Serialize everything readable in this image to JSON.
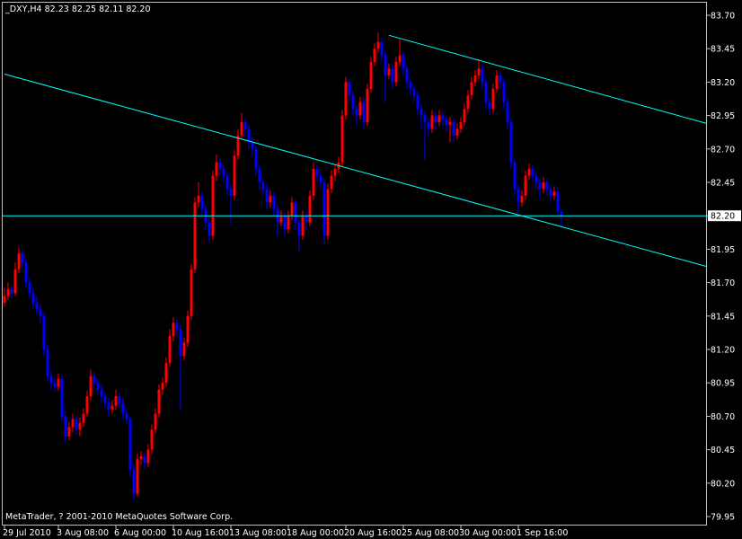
{
  "chart_data": {
    "type": "candlestick",
    "header": {
      "symbol": "_DXY,H4",
      "ohlc_labels": [
        "82.23",
        "82.25",
        "82.11",
        "82.20"
      ]
    },
    "footer": "MetaTrader, ? 2001-2010 MetaQuotes Software Corp.",
    "up_color": "#ff0000",
    "down_color": "#0000ff",
    "line_color": "#00ffff",
    "background": "#000000",
    "ylim": [
      79.95,
      83.7
    ],
    "yticks": [
      {
        "value": 83.7,
        "label": "83.70"
      },
      {
        "value": 83.45,
        "label": "83.45"
      },
      {
        "value": 83.2,
        "label": "83.20"
      },
      {
        "value": 82.95,
        "label": "82.95"
      },
      {
        "value": 82.7,
        "label": "82.70"
      },
      {
        "value": 82.45,
        "label": "82.45"
      },
      {
        "value": 82.2,
        "label": "82.20"
      },
      {
        "value": 81.95,
        "label": "81.95"
      },
      {
        "value": 81.7,
        "label": "81.70"
      },
      {
        "value": 81.45,
        "label": "81.45"
      },
      {
        "value": 81.2,
        "label": "81.20"
      },
      {
        "value": 80.95,
        "label": "80.95"
      },
      {
        "value": 80.7,
        "label": "80.70"
      },
      {
        "value": 80.45,
        "label": "80.45"
      },
      {
        "value": 80.2,
        "label": "80.20"
      },
      {
        "value": 79.95,
        "label": "79.95"
      }
    ],
    "xticks": [
      {
        "bar": 0,
        "label": "29 Jul 2010"
      },
      {
        "bar": 15,
        "label": "3 Aug 08:00"
      },
      {
        "bar": 31,
        "label": "6 Aug 00:00"
      },
      {
        "bar": 47,
        "label": "10 Aug 16:00"
      },
      {
        "bar": 63,
        "label": "13 Aug 08:00"
      },
      {
        "bar": 79,
        "label": "18 Aug 00:00"
      },
      {
        "bar": 95,
        "label": "20 Aug 16:00"
      },
      {
        "bar": 111,
        "label": "25 Aug 08:00"
      },
      {
        "bar": 127,
        "label": "30 Aug 00:00"
      },
      {
        "bar": 143,
        "label": "1 Sep 16:00"
      }
    ],
    "bid_line": {
      "value": 82.2,
      "label": "82.20"
    },
    "trendlines": [
      {
        "x": [
          107,
          195.5
        ],
        "y": [
          83.55,
          82.89
        ]
      },
      {
        "x": [
          0,
          195.5
        ],
        "y": [
          83.26,
          81.82
        ]
      }
    ],
    "candles": [
      [
        81.55,
        81.66,
        81.52,
        81.6
      ],
      [
        81.6,
        81.7,
        81.57,
        81.65
      ],
      [
        81.65,
        81.68,
        81.58,
        81.62
      ],
      [
        81.62,
        81.85,
        81.6,
        81.8
      ],
      [
        81.8,
        81.96,
        81.77,
        81.92
      ],
      [
        81.92,
        81.94,
        81.8,
        81.85
      ],
      [
        81.85,
        81.88,
        81.66,
        81.7
      ],
      [
        81.7,
        81.74,
        81.58,
        81.62
      ],
      [
        81.62,
        81.66,
        81.5,
        81.55
      ],
      [
        81.55,
        81.6,
        81.46,
        81.5
      ],
      [
        81.5,
        81.54,
        81.4,
        81.45
      ],
      [
        81.45,
        81.48,
        81.15,
        81.2
      ],
      [
        81.2,
        81.24,
        80.96,
        81.0
      ],
      [
        81.0,
        81.04,
        80.9,
        80.95
      ],
      [
        80.95,
        80.99,
        80.88,
        80.92
      ],
      [
        80.92,
        81.02,
        80.89,
        80.98
      ],
      [
        80.98,
        81.0,
        80.66,
        80.7
      ],
      [
        80.7,
        80.74,
        80.5,
        80.55
      ],
      [
        80.55,
        80.66,
        80.52,
        80.62
      ],
      [
        80.62,
        80.72,
        80.58,
        80.68
      ],
      [
        80.68,
        80.71,
        80.56,
        80.6
      ],
      [
        80.6,
        80.69,
        80.55,
        80.65
      ],
      [
        80.65,
        80.76,
        80.62,
        80.72
      ],
      [
        80.72,
        80.89,
        80.7,
        80.85
      ],
      [
        80.85,
        81.05,
        80.82,
        81.0
      ],
      [
        81.0,
        81.03,
        80.91,
        80.95
      ],
      [
        80.95,
        80.98,
        80.86,
        80.9
      ],
      [
        80.9,
        80.94,
        80.8,
        80.85
      ],
      [
        80.85,
        80.88,
        80.76,
        80.8
      ],
      [
        80.8,
        80.84,
        80.7,
        80.75
      ],
      [
        80.75,
        80.82,
        80.72,
        80.78
      ],
      [
        80.78,
        80.9,
        80.75,
        80.85
      ],
      [
        80.85,
        80.88,
        80.76,
        80.8
      ],
      [
        80.8,
        80.83,
        80.68,
        80.72
      ],
      [
        80.72,
        80.76,
        80.64,
        80.68
      ],
      [
        80.68,
        80.7,
        80.25,
        80.3
      ],
      [
        80.3,
        80.34,
        80.07,
        80.12
      ],
      [
        80.12,
        80.42,
        80.1,
        80.38
      ],
      [
        80.38,
        80.44,
        80.34,
        80.4
      ],
      [
        80.4,
        80.43,
        80.31,
        80.35
      ],
      [
        80.35,
        80.49,
        80.32,
        80.45
      ],
      [
        80.45,
        80.64,
        80.42,
        80.6
      ],
      [
        80.6,
        80.76,
        80.57,
        80.72
      ],
      [
        80.72,
        80.94,
        80.69,
        80.9
      ],
      [
        80.9,
        80.99,
        80.86,
        80.95
      ],
      [
        80.95,
        81.14,
        80.92,
        81.1
      ],
      [
        81.1,
        81.35,
        81.07,
        81.3
      ],
      [
        81.3,
        81.44,
        81.26,
        81.4
      ],
      [
        81.4,
        81.43,
        81.3,
        81.35
      ],
      [
        81.35,
        81.38,
        80.75,
        81.15
      ],
      [
        81.15,
        81.29,
        81.12,
        81.25
      ],
      [
        81.25,
        81.49,
        81.22,
        81.45
      ],
      [
        81.45,
        81.84,
        81.42,
        81.8
      ],
      [
        81.8,
        82.34,
        81.77,
        82.3
      ],
      [
        82.3,
        82.45,
        82.26,
        82.35
      ],
      [
        82.35,
        82.38,
        82.2,
        82.25
      ],
      [
        82.25,
        82.28,
        82.1,
        82.15
      ],
      [
        82.15,
        82.18,
        82.0,
        82.05
      ],
      [
        82.05,
        82.54,
        82.02,
        82.5
      ],
      [
        82.5,
        82.66,
        82.46,
        82.6
      ],
      [
        82.6,
        82.63,
        82.5,
        82.55
      ],
      [
        82.55,
        82.58,
        82.45,
        82.5
      ],
      [
        82.5,
        82.53,
        82.35,
        82.4
      ],
      [
        82.4,
        82.43,
        82.14,
        82.35
      ],
      [
        82.35,
        82.69,
        82.32,
        82.65
      ],
      [
        82.65,
        82.85,
        82.62,
        82.8
      ],
      [
        82.8,
        82.97,
        82.77,
        82.9
      ],
      [
        82.9,
        82.93,
        82.8,
        82.85
      ],
      [
        82.85,
        82.88,
        82.7,
        82.75
      ],
      [
        82.75,
        82.79,
        82.65,
        82.7
      ],
      [
        82.7,
        82.73,
        82.5,
        82.55
      ],
      [
        82.55,
        82.58,
        82.4,
        82.45
      ],
      [
        82.45,
        82.48,
        82.35,
        82.4
      ],
      [
        82.4,
        82.43,
        82.25,
        82.3
      ],
      [
        82.3,
        82.39,
        82.26,
        82.35
      ],
      [
        82.35,
        82.38,
        82.2,
        82.25
      ],
      [
        82.25,
        82.28,
        82.05,
        82.15
      ],
      [
        82.15,
        82.24,
        82.12,
        82.2
      ],
      [
        82.2,
        82.23,
        82.05,
        82.1
      ],
      [
        82.1,
        82.24,
        82.07,
        82.2
      ],
      [
        82.2,
        82.34,
        82.17,
        82.3
      ],
      [
        82.3,
        82.33,
        82.1,
        82.15
      ],
      [
        82.15,
        82.18,
        81.93,
        82.05
      ],
      [
        82.05,
        82.24,
        82.02,
        82.2
      ],
      [
        82.2,
        82.23,
        82.1,
        82.15
      ],
      [
        82.15,
        82.39,
        82.12,
        82.35
      ],
      [
        82.35,
        82.6,
        82.32,
        82.55
      ],
      [
        82.55,
        82.58,
        82.45,
        82.5
      ],
      [
        82.5,
        82.53,
        82.4,
        82.45
      ],
      [
        82.45,
        82.48,
        81.98,
        82.05
      ],
      [
        82.05,
        82.44,
        82.02,
        82.4
      ],
      [
        82.4,
        82.54,
        82.37,
        82.5
      ],
      [
        82.5,
        82.59,
        82.46,
        82.55
      ],
      [
        82.55,
        82.64,
        82.52,
        82.6
      ],
      [
        82.6,
        82.99,
        82.57,
        82.95
      ],
      [
        82.95,
        83.24,
        82.92,
        83.2
      ],
      [
        83.2,
        83.23,
        83.05,
        83.1
      ],
      [
        83.1,
        83.13,
        82.95,
        83.0
      ],
      [
        83.0,
        83.03,
        82.88,
        82.95
      ],
      [
        82.95,
        83.09,
        82.92,
        83.05
      ],
      [
        83.05,
        83.08,
        82.85,
        82.9
      ],
      [
        82.9,
        83.19,
        82.87,
        83.15
      ],
      [
        83.15,
        83.39,
        83.12,
        83.35
      ],
      [
        83.35,
        83.49,
        83.32,
        83.45
      ],
      [
        83.45,
        83.57,
        83.42,
        83.5
      ],
      [
        83.5,
        83.53,
        83.35,
        83.4
      ],
      [
        83.4,
        83.43,
        83.05,
        83.25
      ],
      [
        83.25,
        83.34,
        83.22,
        83.3
      ],
      [
        83.3,
        83.33,
        83.15,
        83.2
      ],
      [
        83.2,
        83.39,
        83.17,
        83.35
      ],
      [
        83.35,
        83.52,
        83.32,
        83.4
      ],
      [
        83.4,
        83.43,
        83.25,
        83.3
      ],
      [
        83.3,
        83.33,
        83.15,
        83.2
      ],
      [
        83.2,
        83.23,
        83.1,
        83.15
      ],
      [
        83.15,
        83.18,
        83.05,
        83.1
      ],
      [
        83.1,
        83.13,
        82.95,
        83.0
      ],
      [
        83.0,
        83.03,
        82.85,
        82.95
      ],
      [
        82.95,
        82.98,
        82.62,
        82.9
      ],
      [
        82.9,
        82.93,
        82.8,
        82.85
      ],
      [
        82.85,
        82.99,
        82.82,
        82.95
      ],
      [
        82.95,
        82.98,
        82.85,
        82.9
      ],
      [
        82.9,
        82.99,
        82.87,
        82.95
      ],
      [
        82.95,
        82.98,
        82.87,
        82.92
      ],
      [
        82.92,
        82.95,
        82.83,
        82.88
      ],
      [
        82.88,
        82.94,
        82.75,
        82.9
      ],
      [
        82.9,
        82.93,
        82.75,
        82.8
      ],
      [
        82.8,
        82.89,
        82.77,
        82.85
      ],
      [
        82.85,
        82.94,
        82.82,
        82.9
      ],
      [
        82.9,
        83.04,
        82.87,
        83.0
      ],
      [
        83.0,
        83.14,
        82.97,
        83.1
      ],
      [
        83.1,
        83.24,
        83.07,
        83.2
      ],
      [
        83.2,
        83.29,
        83.17,
        83.25
      ],
      [
        83.25,
        83.37,
        83.22,
        83.3
      ],
      [
        83.3,
        83.33,
        83.15,
        83.2
      ],
      [
        83.2,
        83.23,
        83.0,
        83.05
      ],
      [
        83.05,
        83.08,
        82.95,
        83.0
      ],
      [
        83.0,
        83.19,
        82.97,
        83.15
      ],
      [
        83.15,
        83.29,
        83.12,
        83.25
      ],
      [
        83.25,
        83.28,
        83.15,
        83.2
      ],
      [
        83.2,
        83.23,
        83.0,
        83.05
      ],
      [
        83.05,
        83.08,
        82.85,
        82.9
      ],
      [
        82.9,
        82.93,
        82.55,
        82.6
      ],
      [
        82.6,
        82.63,
        82.35,
        82.4
      ],
      [
        82.4,
        82.43,
        82.22,
        82.3
      ],
      [
        82.3,
        82.39,
        82.27,
        82.35
      ],
      [
        82.35,
        82.54,
        82.32,
        82.5
      ],
      [
        82.5,
        82.59,
        82.47,
        82.55
      ],
      [
        82.55,
        82.58,
        82.45,
        82.5
      ],
      [
        82.5,
        82.53,
        82.4,
        82.45
      ],
      [
        82.45,
        82.48,
        82.33,
        82.4
      ],
      [
        82.4,
        82.49,
        82.37,
        82.45
      ],
      [
        82.45,
        82.48,
        82.35,
        82.4
      ],
      [
        82.4,
        82.43,
        82.3,
        82.35
      ],
      [
        82.35,
        82.42,
        82.32,
        82.38
      ],
      [
        82.38,
        82.41,
        82.2,
        82.23
      ],
      [
        82.23,
        82.25,
        82.11,
        82.2
      ]
    ]
  }
}
